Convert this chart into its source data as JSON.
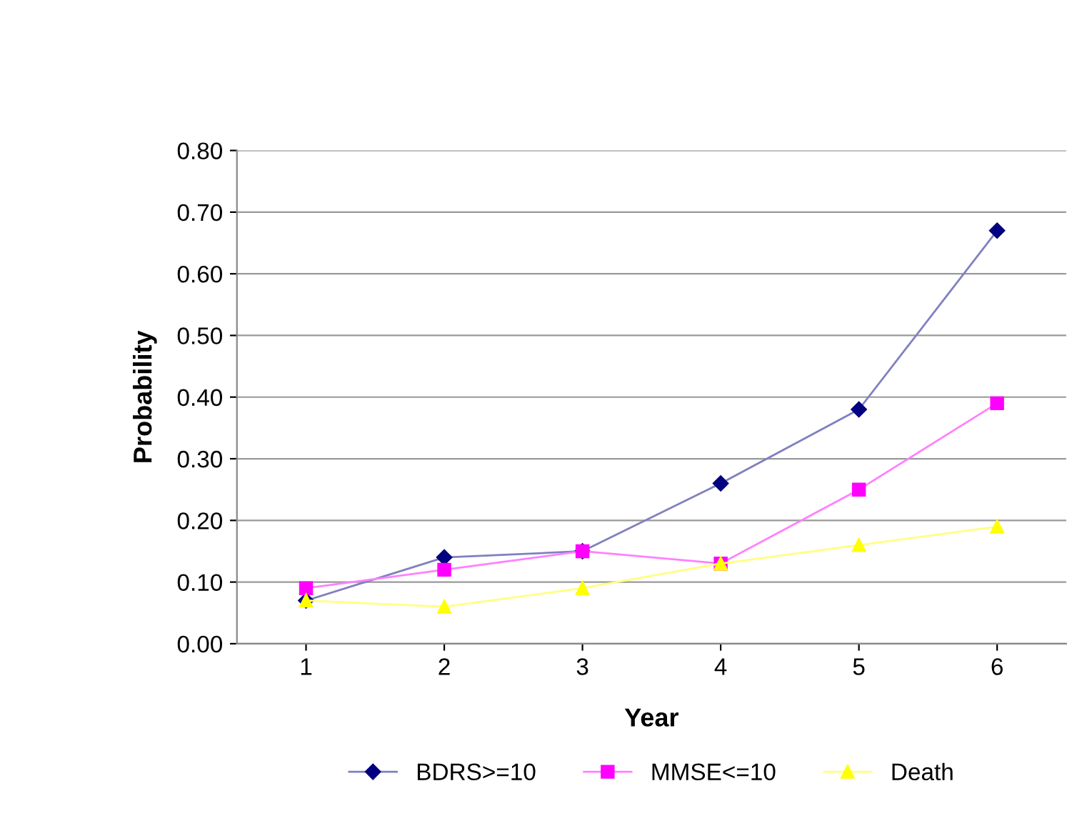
{
  "chart_data": {
    "type": "line",
    "xlabel": "Year",
    "ylabel": "Probability",
    "categories": [
      "1",
      "2",
      "3",
      "4",
      "5",
      "6"
    ],
    "series": [
      {
        "name": "BDRS>=10",
        "color": "#000080",
        "marker": "diamond",
        "values": [
          0.07,
          0.14,
          0.15,
          0.26,
          0.38,
          0.67
        ]
      },
      {
        "name": "MMSE<=10",
        "color": "#ff00ff",
        "marker": "square",
        "values": [
          0.09,
          0.12,
          0.15,
          0.13,
          0.25,
          0.39
        ]
      },
      {
        "name": "Death",
        "color": "#ffff00",
        "marker": "triangle",
        "values": [
          0.07,
          0.06,
          0.09,
          0.13,
          0.16,
          0.19
        ]
      }
    ],
    "ylim": [
      0,
      0.8
    ],
    "yticks": [
      {
        "value": 0,
        "label": "0.00"
      },
      {
        "value": 0.1,
        "label": "0.10"
      },
      {
        "value": 0.2,
        "label": "0.20"
      },
      {
        "value": 0.3,
        "label": "0.30"
      },
      {
        "value": 0.4,
        "label": "0.40"
      },
      {
        "value": 0.5,
        "label": "0.50"
      },
      {
        "value": 0.6,
        "label": "0.60"
      },
      {
        "value": 0.7,
        "label": "0.70"
      },
      {
        "value": 0.8,
        "label": "0.80"
      }
    ],
    "grid": "y",
    "legend": "bottom",
    "line_style": "solid"
  }
}
